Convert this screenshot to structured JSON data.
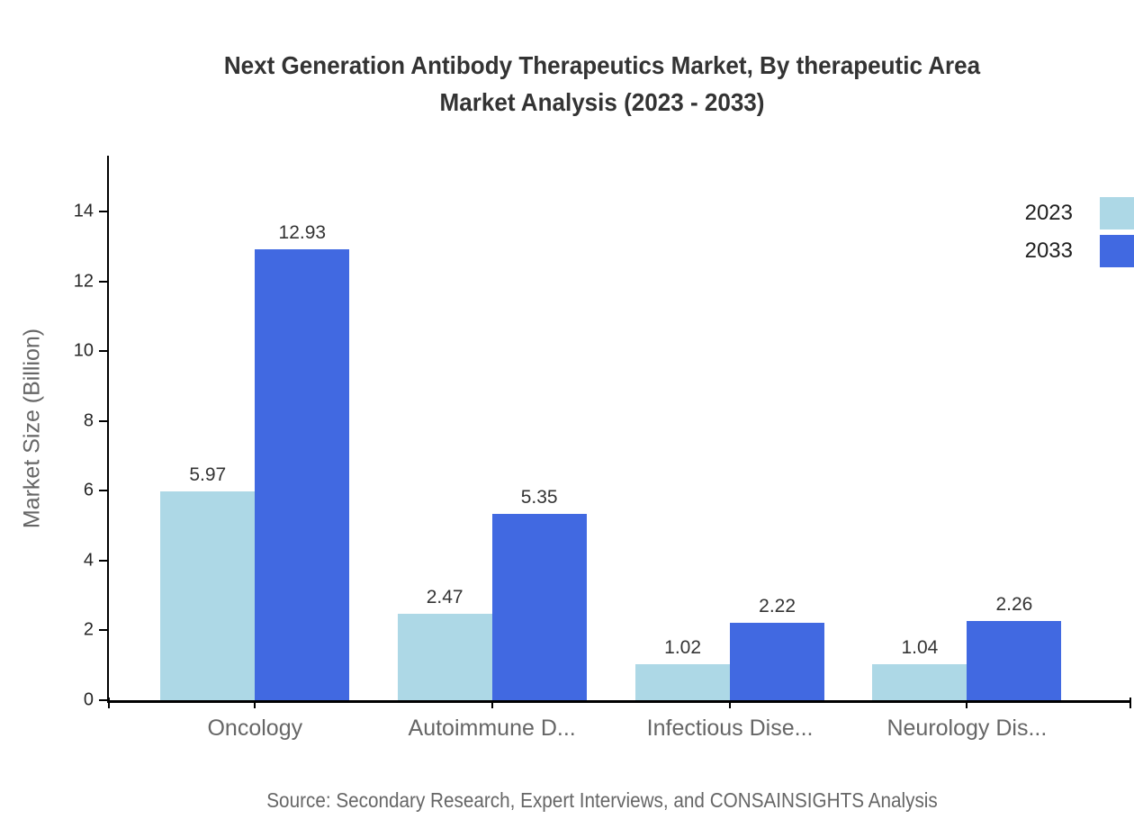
{
  "page": {
    "background": "#ffffff"
  },
  "title": {
    "line1": "Next Generation Antibody Therapeutics Market, By therapeutic Area",
    "line2": "Market Analysis (2023 - 2033)"
  },
  "footer": {
    "source": "Source: Secondary Research, Expert Interviews, and CONSAINSIGHTS Analysis"
  },
  "legend": {
    "items": [
      {
        "label": "2023",
        "color": "#ADD8E6"
      },
      {
        "label": "2033",
        "color": "#4169E1"
      }
    ]
  },
  "chart_data": {
    "type": "bar",
    "title": "Next Generation Antibody Therapeutics Market, By therapeutic Area Market Analysis (2023 - 2033)",
    "categories": [
      "Oncology",
      "Autoimmune D...",
      "Infectious Dise...",
      "Neurology Dis..."
    ],
    "series": [
      {
        "name": "2023",
        "color": "#ADD8E6",
        "values": [
          5.97,
          2.47,
          1.02,
          1.04
        ]
      },
      {
        "name": "2033",
        "color": "#4169E1",
        "values": [
          12.93,
          5.35,
          2.22,
          2.26
        ]
      }
    ],
    "xlabel": "",
    "ylabel": "Market Size (Billion)",
    "ylim": [
      0,
      15.6
    ],
    "yticks": [
      0,
      2,
      4,
      6,
      8,
      10,
      12,
      14
    ],
    "grid": false,
    "legend_position": "top-right",
    "value_label_format": "0.00",
    "group_centers_pct": [
      14.3,
      37.5,
      60.8,
      84.0
    ],
    "axis_color": "#000000",
    "tick_label_color": "#262626",
    "category_label_color": "#666666",
    "value_label_color": "#333333"
  }
}
